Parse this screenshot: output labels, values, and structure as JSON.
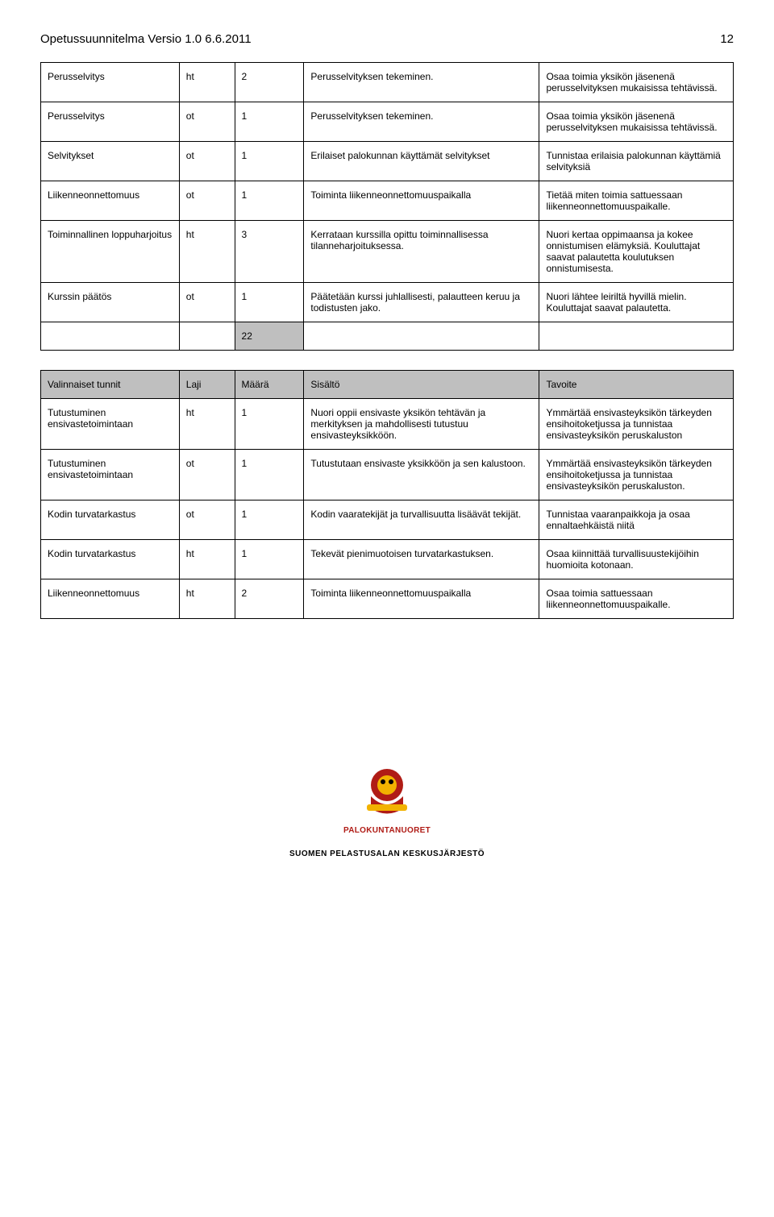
{
  "header": {
    "title": "Opetussuunnitelma Versio 1.0 6.6.2011",
    "page": "12"
  },
  "table1": {
    "rows": [
      {
        "c0": "Perusselvitys",
        "c1": "ht",
        "c2": "2",
        "c3": "Perusselvityksen tekeminen.",
        "c4": "Osaa toimia yksikön jäsenenä perusselvityksen mukaisissa tehtävissä."
      },
      {
        "c0": "Perusselvitys",
        "c1": "ot",
        "c2": "1",
        "c3": "Perusselvityksen tekeminen.",
        "c4": "Osaa toimia yksikön jäsenenä perusselvityksen mukaisissa tehtävissä."
      },
      {
        "c0": "Selvitykset",
        "c1": "ot",
        "c2": "1",
        "c3": "Erilaiset palokunnan käyttämät selvitykset",
        "c4": "Tunnistaa erilaisia palokunnan käyttämiä selvityksiä"
      },
      {
        "c0": "Liikenneonnettomuus",
        "c1": "ot",
        "c2": "1",
        "c3": "Toiminta liikenneonnettomuuspaikalla",
        "c4": "Tietää miten toimia sattuessaan liikenneonnettomuuspaikalle."
      },
      {
        "c0": "Toiminnallinen loppuharjoitus",
        "c1": "ht",
        "c2": "3",
        "c3": "Kerrataan kurssilla opittu toiminnallisessa tilanneharjoituksessa.",
        "c4": "Nuori kertaa oppimaansa ja kokee onnistumisen elämyksiä. Kouluttajat saavat palautetta koulutuksen onnistumisesta."
      },
      {
        "c0": "Kurssin päätös",
        "c1": "ot",
        "c2": "1",
        "c3": "Päätetään kurssi juhlallisesti, palautteen keruu ja todistusten jako.",
        "c4": "Nuori lähtee leiriltä hyvillä mielin. Kouluttajat saavat palautetta."
      }
    ],
    "total": "22"
  },
  "table2": {
    "header": {
      "c0": "Valinnaiset tunnit",
      "c1": "Laji",
      "c2": "Määrä",
      "c3": "Sisältö",
      "c4": "Tavoite"
    },
    "rows": [
      {
        "c0": "Tutustuminen ensivastetoimintaan",
        "c1": "ht",
        "c2": "1",
        "c3": "Nuori oppii ensivaste yksikön tehtävän ja merkityksen ja mahdollisesti tutustuu ensivasteyksikköön.",
        "c4": "Ymmärtää ensivasteyksikön tärkeyden ensihoitoketjussa ja tunnistaa ensivasteyksikön peruskaluston"
      },
      {
        "c0": "Tutustuminen ensivastetoimintaan",
        "c1": "ot",
        "c2": "1",
        "c3": "Tutustutaan ensivaste yksikköön ja sen kalustoon.",
        "c4": "Ymmärtää ensivasteyksikön tärkeyden ensihoitoketjussa ja tunnistaa ensivasteyksikön peruskaluston."
      },
      {
        "c0": "Kodin turvatarkastus",
        "c1": "ot",
        "c2": "1",
        "c3": "Kodin vaaratekijät ja turvallisuutta lisäävät tekijät.",
        "c4": "Tunnistaa vaaranpaikkoja ja osaa ennaltaehkäistä niitä"
      },
      {
        "c0": "Kodin turvatarkastus",
        "c1": "ht",
        "c2": "1",
        "c3": "Tekevät pienimuotoisen turvatarkastuksen.",
        "c4": "Osaa kiinnittää turvallisuustekijöihin huomioita kotonaan."
      },
      {
        "c0": "Liikenneonnettomuus",
        "c1": "ht",
        "c2": "2",
        "c3": "Toiminta liikenneonnettomuuspaikalla",
        "c4": "Osaa toimia sattuessaan liikenneonnettomuuspaikalle."
      }
    ]
  },
  "footer": {
    "brand": "PALOKUNTANUORET",
    "org": "SUOMEN PELASTUSALAN KESKUSJÄRJESTÖ"
  },
  "colors": {
    "shaded": "#bfbfbf",
    "brandRed": "#b01c16",
    "brandYellow": "#f2b200",
    "text": "#000000",
    "bg": "#ffffff"
  }
}
